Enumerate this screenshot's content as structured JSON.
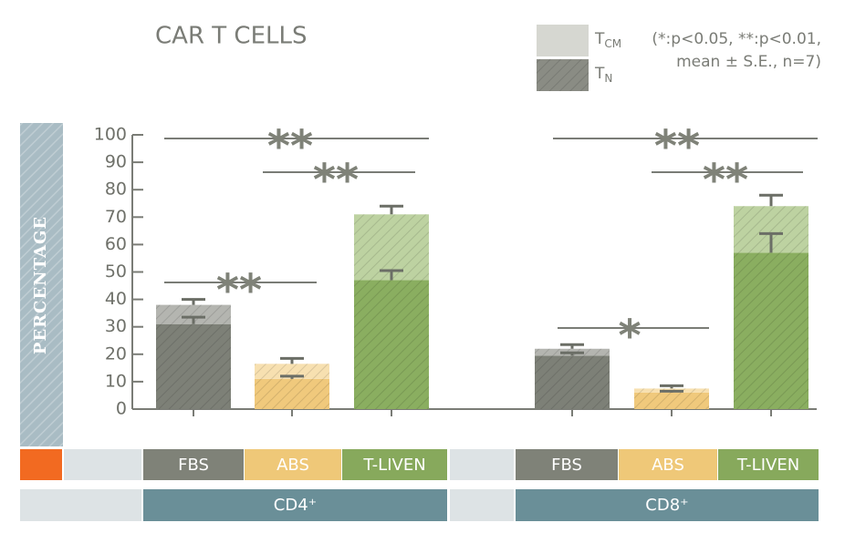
{
  "chart_data": {
    "type": "bar",
    "stacked": true,
    "title": "CAR T CELLS",
    "note": [
      "(*:p<0.05, **:p<0.01,",
      "mean ± S.E., n=7)"
    ],
    "y_label": "PERCENTAGE",
    "groups": [
      "CD4⁺",
      "CD8⁺"
    ],
    "categories": [
      "FBS",
      "ABS",
      "T-LIVEN",
      "FBS",
      "ABS",
      "T-LIVEN"
    ],
    "category_colors": [
      "#7f8278",
      "#efc878",
      "#87a95c",
      "#7f8278",
      "#efc878",
      "#87a95c"
    ],
    "series": [
      {
        "name": "TN",
        "color": "#8a8c84",
        "bar_colors": [
          "#7d8077",
          "#f0c97c",
          "#8aae60",
          "#7d8077",
          "#f0c97c",
          "#8aae60"
        ],
        "values": [
          31,
          11,
          47,
          19.5,
          6,
          57
        ],
        "errors": [
          2.5,
          1,
          3.5,
          1,
          0.5,
          7
        ]
      },
      {
        "name": "TCM",
        "color": "#d6d7d1",
        "bar_colors": [
          "#b4b5b0",
          "#f7e0b0",
          "#bdd2a1",
          "#b4b5b0",
          "#f7e0b0",
          "#bdd2a1"
        ],
        "values": [
          7,
          5.5,
          24,
          2.5,
          1.5,
          17
        ],
        "errors": [
          2,
          2,
          3,
          1.5,
          1,
          4
        ]
      }
    ],
    "annotations": [
      "**",
      "**",
      "**",
      "**",
      "**",
      "*"
    ],
    "ylim": [
      0,
      100
    ],
    "yticks": [
      0,
      10,
      20,
      30,
      40,
      50,
      60,
      70,
      80,
      90,
      100
    ]
  }
}
